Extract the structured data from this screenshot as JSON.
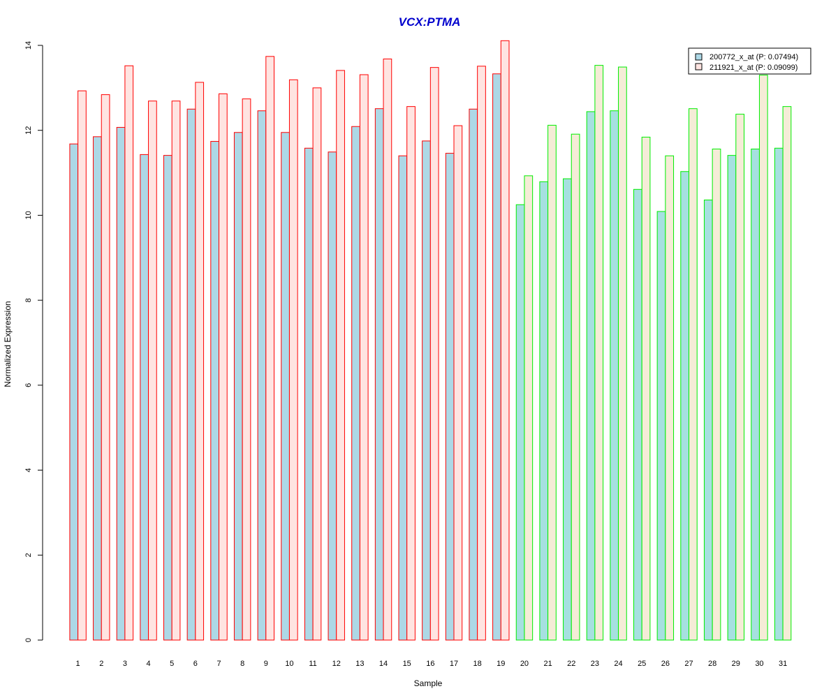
{
  "chart_data": {
    "type": "bar",
    "title": "VCX:PTMA",
    "xlabel": "Sample",
    "ylabel": "Normalized Expression",
    "ylim": [
      0,
      14
    ],
    "yticks": [
      0,
      2,
      4,
      6,
      8,
      10,
      12,
      14
    ],
    "categories": [
      "1",
      "2",
      "3",
      "4",
      "5",
      "6",
      "7",
      "8",
      "9",
      "10",
      "11",
      "12",
      "13",
      "14",
      "15",
      "16",
      "17",
      "18",
      "19",
      "20",
      "21",
      "22",
      "23",
      "24",
      "25",
      "26",
      "27",
      "28",
      "29",
      "30",
      "31"
    ],
    "groups": [
      {
        "samples": [
          1,
          19
        ],
        "border_color": "#ff0000",
        "fills": [
          "#add8e6",
          "#ffe4e1"
        ]
      },
      {
        "samples": [
          20,
          31
        ],
        "border_color": "#00ee00",
        "fills": [
          "#a6e0e0",
          "#f5ecd7"
        ]
      }
    ],
    "series": [
      {
        "name": "200772_x_at (P: 0.07494)",
        "legend_color": "#add8e6",
        "values": [
          11.68,
          11.85,
          12.07,
          11.43,
          11.41,
          12.5,
          11.74,
          11.95,
          12.46,
          11.95,
          11.58,
          11.49,
          12.09,
          12.51,
          11.4,
          11.75,
          11.46,
          12.5,
          13.33,
          10.25,
          10.79,
          10.86,
          12.44,
          12.46,
          10.61,
          10.09,
          11.03,
          10.36,
          11.41,
          11.56,
          11.58
        ]
      },
      {
        "name": "211921_x_at (P: 0.09099)",
        "legend_color": "#ffe4e1",
        "values": [
          12.93,
          12.84,
          13.52,
          12.69,
          12.69,
          13.13,
          12.86,
          12.74,
          13.74,
          13.19,
          13.0,
          13.41,
          13.31,
          13.68,
          12.56,
          13.48,
          12.11,
          13.51,
          14.11,
          10.93,
          12.12,
          11.91,
          13.53,
          13.49,
          11.84,
          11.4,
          12.51,
          11.56,
          12.38,
          13.3,
          12.56
        ]
      }
    ],
    "legend_position": "top-right",
    "title_color": "#0000cd",
    "grid": false
  }
}
